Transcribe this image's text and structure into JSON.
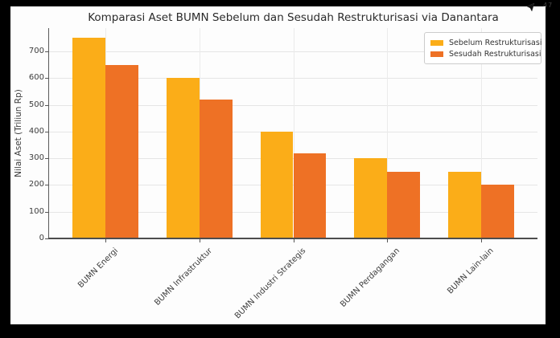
{
  "overlay": {
    "watermark": "47"
  },
  "chart_data": {
    "type": "bar",
    "title": "Komparasi Aset BUMN Sebelum dan Sesudah Restrukturisasi via Danantara",
    "categories": [
      "BUMN Energi",
      "BUMN Infrastruktur",
      "BUMN Industri Strategis",
      "BUMN Perdagangan",
      "BUMN Lain-lain"
    ],
    "series": [
      {
        "name": "Sebelum Restrukturisasi",
        "color": "#FBAD18",
        "values": [
          750,
          600,
          400,
          300,
          250
        ]
      },
      {
        "name": "Sesudah Restrukturisasi",
        "color": "#EE7125",
        "values": [
          650,
          520,
          320,
          250,
          200
        ]
      }
    ],
    "ylabel": "Nilai Aset (Triliun Rp)",
    "yticks": [
      0,
      100,
      200,
      300,
      400,
      500,
      600,
      700
    ],
    "ylim": [
      0,
      787.5
    ],
    "bar_width": 0.35,
    "x_margin": 0.6,
    "grid": true,
    "grid_color": "#e5e5e5",
    "legend_position": "upper right"
  }
}
